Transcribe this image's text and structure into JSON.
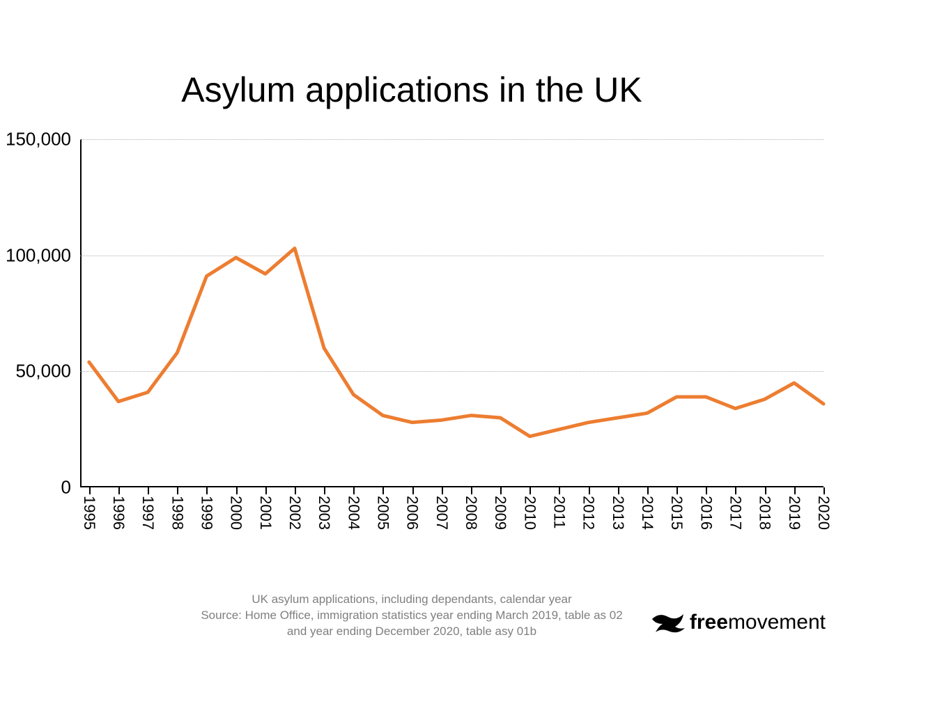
{
  "chart": {
    "type": "line",
    "title": "Asylum applications in the UK",
    "title_fontsize": 50,
    "background_color": "#ffffff",
    "line_color": "#ed7d31",
    "line_width": 5,
    "grid_color": "#b0b0b0",
    "axis_color": "#000000",
    "ylim": [
      0,
      150000
    ],
    "y_ticks": [
      0,
      50000,
      100000,
      150000
    ],
    "y_tick_labels": [
      "0",
      "50,000",
      "100,000",
      "150,000"
    ],
    "y_label_fontsize": 26,
    "x_labels": [
      "1995",
      "1996",
      "1997",
      "1998",
      "1999",
      "2000",
      "2001",
      "2002",
      "2003",
      "2004",
      "2005",
      "2006",
      "2007",
      "2008",
      "2009",
      "2010",
      "2011",
      "2012",
      "2013",
      "2014",
      "2015",
      "2016",
      "2017",
      "2018",
      "2019",
      "2020"
    ],
    "x_label_fontsize": 22,
    "values": [
      54000,
      37000,
      41000,
      58000,
      91000,
      99000,
      92000,
      103000,
      60000,
      40000,
      31000,
      28000,
      29000,
      31000,
      30000,
      22000,
      25000,
      28000,
      30000,
      32000,
      39000,
      39000,
      34000,
      38000,
      45000,
      36000
    ],
    "x_label_rotation": 90
  },
  "caption": {
    "line1": "UK asylum applications, including dependants, calendar year",
    "line2": "Source: Home Office, immigration statistics year ending March 2019, table as 02",
    "line3": "and year ending December 2020, table asy 01b",
    "fontsize": 17,
    "color": "#7f7f7f"
  },
  "logo": {
    "bold_part": "free",
    "normal_part": "movement",
    "icon_name": "bird-icon",
    "text_color": "#000000",
    "fontsize": 30
  }
}
